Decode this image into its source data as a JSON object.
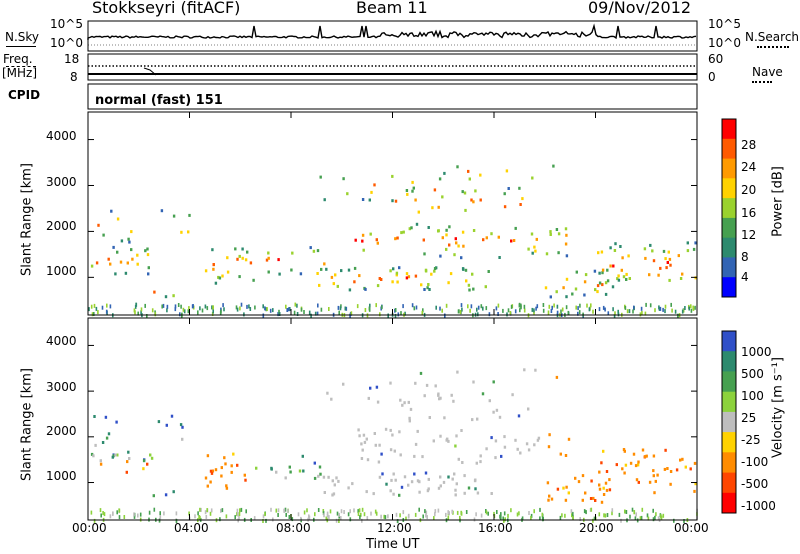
{
  "header": {
    "station": "Stokkseyri (fitACF)",
    "beam": "Beam 11",
    "date": "09/Nov/2012"
  },
  "side_labels": {
    "nsky": "N.Sky",
    "freq": "Freq.",
    "freq_unit": "[MHz]",
    "cpid": "CPID",
    "nsearch": "N.Search",
    "nave": "Nave"
  },
  "noise_panel": {
    "left_ticks": [
      "10^5",
      "10^0"
    ],
    "right_ticks": [
      "10^5",
      "10^0"
    ]
  },
  "freq_panel": {
    "left_ticks": [
      "18",
      "8"
    ],
    "right_ticks": [
      "60",
      "0"
    ]
  },
  "cpid_text": "normal (fast) 151",
  "chart_data": [
    {
      "type": "heatmap",
      "ylabel": "Slant Range [km]",
      "ylim": [
        180,
        4600
      ],
      "y_ticks": [
        "4000",
        "3000",
        "2000",
        "1000"
      ],
      "colorbar": {
        "label": "Power [dB]",
        "ticks": [
          "28",
          "24",
          "20",
          "16",
          "12",
          "8",
          "4"
        ],
        "colors": [
          "#ff0000",
          "#ff5a00",
          "#ff9a00",
          "#ffd200",
          "#9ad22e",
          "#46a050",
          "#2d8a6e",
          "#3264b4",
          "#0000ff"
        ]
      }
    },
    {
      "type": "heatmap",
      "ylabel": "Slant Range [km]",
      "ylim": [
        180,
        4600
      ],
      "y_ticks": [
        "4000",
        "3000",
        "2000",
        "1000"
      ],
      "colorbar": {
        "label": "Velocity [m s⁻¹]",
        "ticks": [
          "1000",
          "500",
          "100",
          "25",
          "-25",
          "-100",
          "-500",
          "-1000"
        ],
        "colors": [
          "#3050c8",
          "#2d8a6e",
          "#46a050",
          "#8cd23c",
          "#bebebe",
          "#ffd200",
          "#ff8c00",
          "#ff4600",
          "#ff0000"
        ]
      }
    }
  ],
  "x_axis": {
    "ticks": [
      "00:00",
      "04:00",
      "08:00",
      "12:00",
      "16:00",
      "20:00",
      "00:00"
    ],
    "label": "Time UT"
  }
}
